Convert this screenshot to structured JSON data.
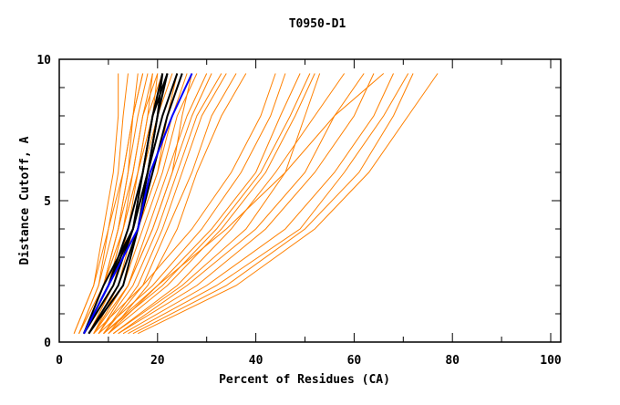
{
  "chart_data": {
    "type": "line",
    "title": "T0950-D1",
    "xlabel": "Percent of Residues (CA)",
    "ylabel": "Distance Cutoff, A",
    "xlim": [
      0,
      102
    ],
    "ylim": [
      0,
      10
    ],
    "xticks": [
      "0",
      "20",
      "40",
      "60",
      "80",
      "100"
    ],
    "yticks": [
      "0",
      "5",
      "10"
    ],
    "y_levels": [
      0.3,
      2,
      4,
      6,
      8,
      9.5
    ],
    "colors": {
      "other": "#ff8000",
      "highlight": "#000000",
      "selected": "#0000ff"
    },
    "orange_series": [
      [
        3,
        7,
        9,
        11,
        12,
        12
      ],
      [
        3,
        7,
        10,
        12,
        13,
        14
      ],
      [
        4,
        8,
        10,
        13,
        15,
        16
      ],
      [
        4,
        8,
        11,
        13,
        15,
        17
      ],
      [
        4,
        9,
        12,
        14,
        16,
        18
      ],
      [
        5,
        9,
        12,
        15,
        17,
        19
      ],
      [
        5,
        10,
        13,
        15,
        17,
        20
      ],
      [
        5,
        10,
        13,
        16,
        18,
        21
      ],
      [
        6,
        11,
        14,
        17,
        19,
        22
      ],
      [
        6,
        11,
        15,
        17,
        20,
        23
      ],
      [
        6,
        12,
        15,
        18,
        21,
        24
      ],
      [
        7,
        12,
        16,
        19,
        22,
        25
      ],
      [
        7,
        13,
        16,
        20,
        23,
        26
      ],
      [
        7,
        13,
        17,
        21,
        24,
        28
      ],
      [
        8,
        14,
        18,
        22,
        26,
        30
      ],
      [
        8,
        14,
        19,
        23,
        27,
        31
      ],
      [
        8,
        15,
        20,
        24,
        28,
        33
      ],
      [
        9,
        16,
        21,
        25,
        29,
        34
      ],
      [
        9,
        17,
        22,
        27,
        31,
        36
      ],
      [
        10,
        18,
        24,
        28,
        33,
        38
      ],
      [
        4,
        9,
        13,
        16,
        19,
        20
      ],
      [
        5,
        10,
        14,
        17,
        19,
        21
      ],
      [
        6,
        11,
        14,
        16,
        18,
        19
      ],
      [
        5,
        9,
        12,
        14,
        15,
        17
      ],
      [
        6,
        12,
        16,
        20,
        22,
        24
      ],
      [
        7,
        14,
        19,
        23,
        25,
        27
      ],
      [
        7,
        17,
        27,
        35,
        41,
        44
      ],
      [
        8,
        19,
        29,
        37,
        43,
        46
      ],
      [
        9,
        20,
        31,
        40,
        45,
        49
      ],
      [
        10,
        22,
        33,
        42,
        48,
        52
      ],
      [
        9,
        21,
        32,
        41,
        47,
        51
      ],
      [
        11,
        25,
        38,
        46,
        50,
        53
      ],
      [
        12,
        28,
        42,
        52,
        60,
        64
      ],
      [
        13,
        30,
        46,
        56,
        64,
        68
      ],
      [
        14,
        32,
        49,
        58,
        66,
        71
      ],
      [
        15,
        34,
        50,
        61,
        68,
        72
      ],
      [
        16,
        36,
        52,
        63,
        71,
        77
      ],
      [
        11,
        24,
        35,
        44,
        52,
        58
      ],
      [
        12,
        26,
        40,
        50,
        56,
        62
      ],
      [
        10,
        20,
        34,
        46,
        56,
        66
      ]
    ],
    "black_series": [
      [
        5,
        10,
        14,
        17,
        19,
        21
      ],
      [
        5,
        11,
        15,
        17,
        19,
        22
      ],
      [
        6,
        13,
        16,
        18,
        20,
        22
      ],
      [
        5,
        9,
        15,
        18,
        20,
        21
      ],
      [
        6,
        12,
        16,
        19,
        22,
        25
      ],
      [
        5,
        10,
        15,
        18,
        21,
        24
      ]
    ],
    "blue_series": [
      [
        5,
        10,
        16,
        18.5,
        23,
        27
      ]
    ]
  }
}
